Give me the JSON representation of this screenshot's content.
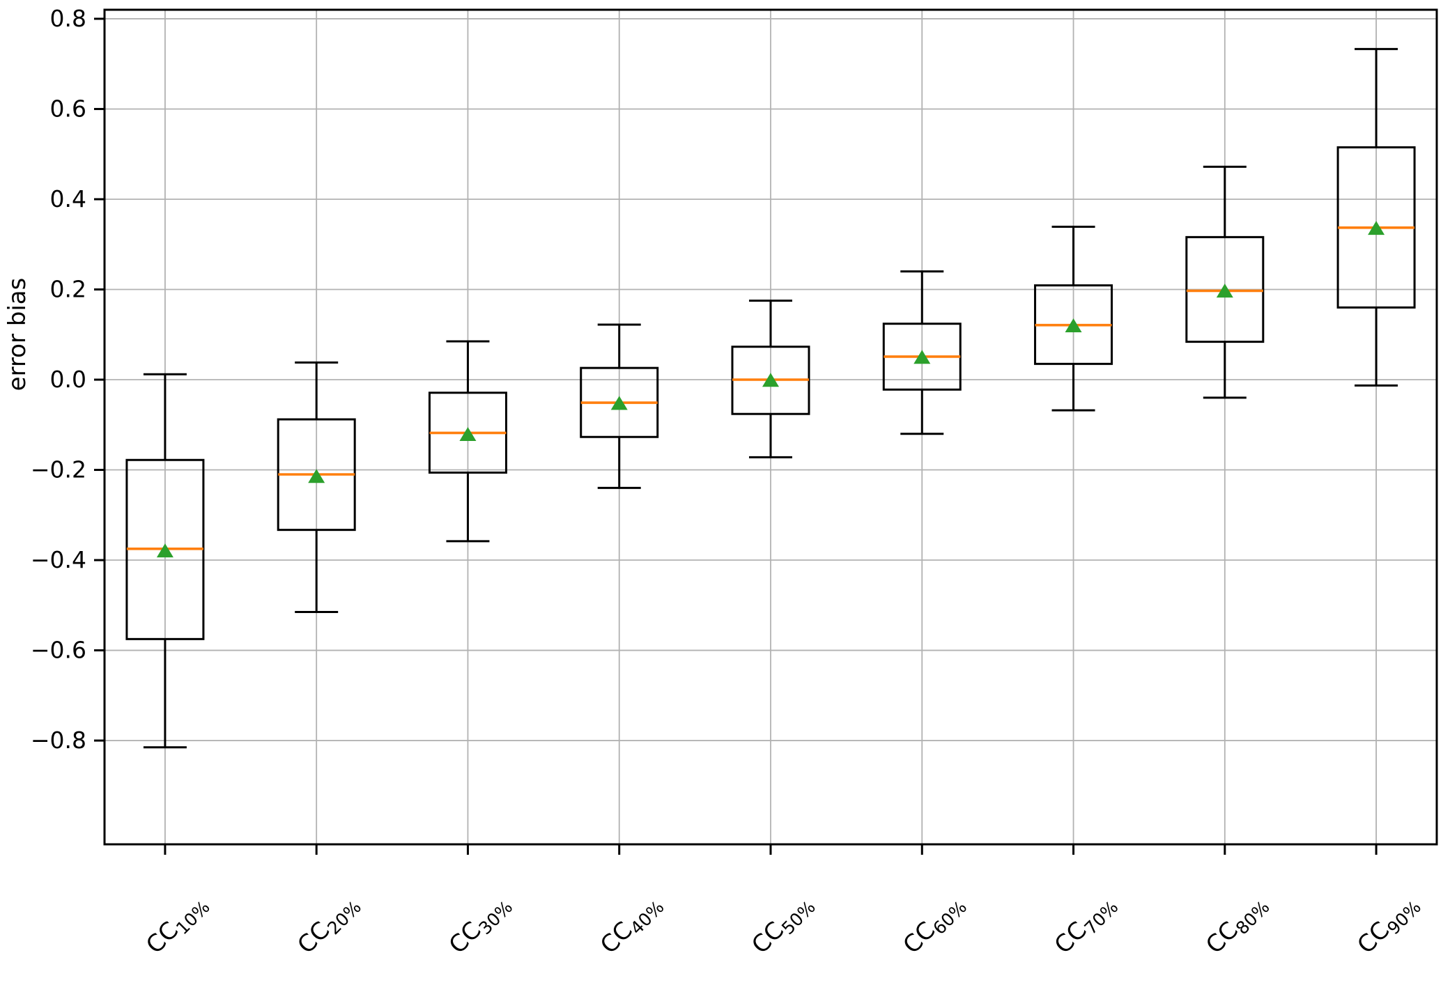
{
  "chart_data": {
    "type": "boxplot",
    "title": "",
    "xlabel": "",
    "ylabel": "error bias",
    "grid": true,
    "legend": "none",
    "ylim": [
      -1.03,
      0.82
    ],
    "yticks": [
      {
        "value": 0.8,
        "label": "0.8"
      },
      {
        "value": 0.6,
        "label": "0.6"
      },
      {
        "value": 0.4,
        "label": "0.4"
      },
      {
        "value": 0.2,
        "label": "0.2"
      },
      {
        "value": 0.0,
        "label": "0.0"
      },
      {
        "value": -0.2,
        "label": "−0.2"
      },
      {
        "value": -0.4,
        "label": "−0.4"
      },
      {
        "value": -0.6,
        "label": "−0.6"
      },
      {
        "value": -0.8,
        "label": "−0.8"
      }
    ],
    "categories": [
      {
        "base": "CC",
        "sub": "10%"
      },
      {
        "base": "CC",
        "sub": "20%"
      },
      {
        "base": "CC",
        "sub": "30%"
      },
      {
        "base": "CC",
        "sub": "40%"
      },
      {
        "base": "CC",
        "sub": "50%"
      },
      {
        "base": "CC",
        "sub": "60%"
      },
      {
        "base": "CC",
        "sub": "70%"
      },
      {
        "base": "CC",
        "sub": "80%"
      },
      {
        "base": "CC",
        "sub": "90%"
      }
    ],
    "boxes": [
      {
        "label": "CC 10%",
        "whislo": -0.815,
        "q1": -0.575,
        "med": -0.375,
        "mean": -0.38,
        "q3": -0.178,
        "whishi": 0.012
      },
      {
        "label": "CC 20%",
        "whislo": -0.515,
        "q1": -0.333,
        "med": -0.21,
        "mean": -0.215,
        "q3": -0.088,
        "whishi": 0.038
      },
      {
        "label": "CC 30%",
        "whislo": -0.358,
        "q1": -0.206,
        "med": -0.118,
        "mean": -0.122,
        "q3": -0.029,
        "whishi": 0.085
      },
      {
        "label": "CC 40%",
        "whislo": -0.24,
        "q1": -0.127,
        "med": -0.051,
        "mean": -0.053,
        "q3": 0.026,
        "whishi": 0.122
      },
      {
        "label": "CC 50%",
        "whislo": -0.172,
        "q1": -0.076,
        "med": 0.0,
        "mean": -0.002,
        "q3": 0.073,
        "whishi": 0.175
      },
      {
        "label": "CC 60%",
        "whislo": -0.12,
        "q1": -0.022,
        "med": 0.051,
        "mean": 0.049,
        "q3": 0.124,
        "whishi": 0.24
      },
      {
        "label": "CC 70%",
        "whislo": -0.068,
        "q1": 0.035,
        "med": 0.121,
        "mean": 0.119,
        "q3": 0.209,
        "whishi": 0.339
      },
      {
        "label": "CC 80%",
        "whislo": -0.04,
        "q1": 0.084,
        "med": 0.197,
        "mean": 0.196,
        "q3": 0.316,
        "whishi": 0.472
      },
      {
        "label": "CC 90%",
        "whislo": -0.013,
        "q1": 0.16,
        "med": 0.337,
        "mean": 0.335,
        "q3": 0.515,
        "whishi": 0.733
      }
    ],
    "colors": {
      "median": "#ff7f0e",
      "mean_marker": "#2ca02c",
      "box_line": "#000000",
      "grid": "#b2b2b2",
      "spine": "#000000",
      "background": "#ffffff"
    },
    "marker_shapes": {
      "mean": "triangle-up"
    }
  }
}
